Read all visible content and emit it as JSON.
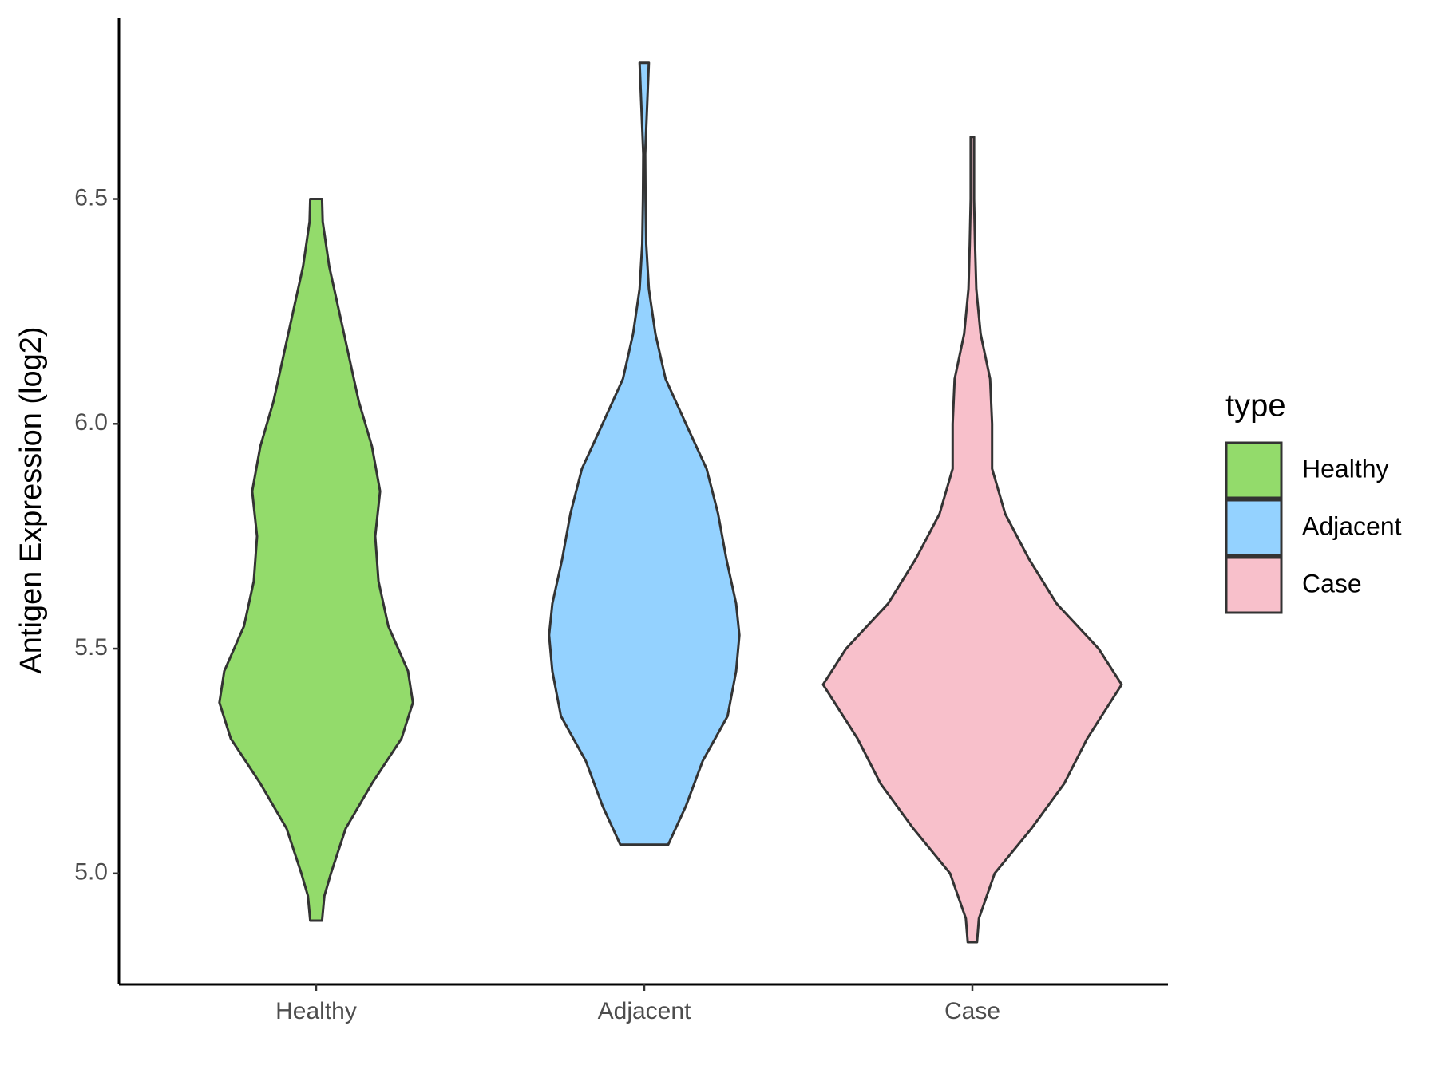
{
  "chart_data": {
    "type": "violin",
    "y_label": "Antigen Expression (log2)",
    "categories": [
      "Healthy",
      "Adjacent",
      "Case"
    ],
    "legend_title": "type",
    "legend_position": "right",
    "ylim": [
      4.753,
      6.902
    ],
    "yticks": [
      {
        "value": 5,
        "label": "5.0"
      },
      {
        "value": 5.5,
        "label": "5.5"
      },
      {
        "value": 6,
        "label": "6.0"
      },
      {
        "value": 6.5,
        "label": "6.5"
      }
    ],
    "series": [
      {
        "name": "Healthy",
        "color": "#93db6b",
        "y": [
          4.895,
          4.95,
          5.0,
          5.1,
          5.2,
          5.3,
          5.38,
          5.45,
          5.55,
          5.65,
          5.75,
          5.85,
          5.95,
          6.05,
          6.15,
          6.25,
          6.35,
          6.45,
          6.5
        ],
        "width": [
          0.018,
          0.025,
          0.045,
          0.09,
          0.17,
          0.26,
          0.295,
          0.28,
          0.22,
          0.19,
          0.18,
          0.195,
          0.17,
          0.13,
          0.1,
          0.07,
          0.04,
          0.02,
          0.018
        ]
      },
      {
        "name": "Adjacent",
        "color": "#94d2ff",
        "y": [
          5.064,
          5.15,
          5.25,
          5.35,
          5.45,
          5.53,
          5.6,
          5.7,
          5.8,
          5.9,
          6.0,
          6.1,
          6.2,
          6.3,
          6.4,
          6.5,
          6.6,
          6.803
        ],
        "width": [
          0.073,
          0.127,
          0.178,
          0.254,
          0.28,
          0.29,
          0.28,
          0.25,
          0.225,
          0.19,
          0.127,
          0.065,
          0.034,
          0.014,
          0.006,
          0.004,
          0.003,
          0.014
        ]
      },
      {
        "name": "Case",
        "color": "#f8c0cb",
        "y": [
          4.847,
          4.9,
          5.0,
          5.1,
          5.2,
          5.3,
          5.42,
          5.5,
          5.6,
          5.7,
          5.8,
          5.9,
          6.0,
          6.1,
          6.2,
          6.3,
          6.4,
          6.5,
          6.638
        ],
        "width": [
          0.014,
          0.02,
          0.068,
          0.18,
          0.28,
          0.35,
          0.455,
          0.385,
          0.257,
          0.172,
          0.1,
          0.06,
          0.06,
          0.054,
          0.025,
          0.012,
          0.008,
          0.005,
          0.005
        ]
      }
    ]
  }
}
